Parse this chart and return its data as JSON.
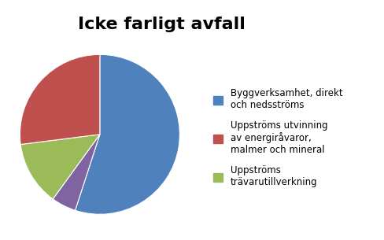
{
  "title": "Icke farligt avfall",
  "title_fontsize": 16,
  "title_fontweight": "bold",
  "slices": [
    55,
    5,
    13,
    27
  ],
  "colors": [
    "#4F81BD",
    "#8064A2",
    "#9BBB59",
    "#C0504D"
  ],
  "startangle": 90,
  "counterclock": false,
  "legend_labels": [
    "Byggverksamhet, direkt\noch nedsströms",
    "Uppströms utvinning\nav energiråvaror,\nmalmer och mineral",
    "Uppströms\nträvarutillverkning"
  ],
  "legend_colors": [
    "#4F81BD",
    "#C0504D",
    "#9BBB59"
  ],
  "legend_fontsize": 8.5,
  "background_color": "#FFFFFF"
}
